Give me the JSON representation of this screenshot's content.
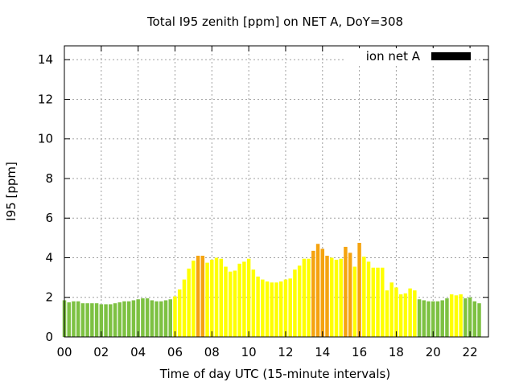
{
  "chart_data": {
    "type": "bar",
    "title": "Total I95 zenith [ppm] on NET A, DoY=308",
    "xlabel": "Time of day UTC (15-minute intervals)",
    "ylabel": "I95 [ppm]",
    "xlim": [
      0,
      23
    ],
    "ylim": [
      0,
      14.7
    ],
    "xticks": [
      {
        "value": 0,
        "label": "00"
      },
      {
        "value": 2,
        "label": "02"
      },
      {
        "value": 4,
        "label": "04"
      },
      {
        "value": 6,
        "label": "06"
      },
      {
        "value": 8,
        "label": "08"
      },
      {
        "value": 10,
        "label": "10"
      },
      {
        "value": 12,
        "label": "12"
      },
      {
        "value": 14,
        "label": "14"
      },
      {
        "value": 16,
        "label": "16"
      },
      {
        "value": 18,
        "label": "18"
      },
      {
        "value": 20,
        "label": "20"
      },
      {
        "value": 22,
        "label": "22"
      }
    ],
    "yticks": [
      {
        "value": 0,
        "label": "0"
      },
      {
        "value": 2,
        "label": "2"
      },
      {
        "value": 4,
        "label": "4"
      },
      {
        "value": 6,
        "label": "6"
      },
      {
        "value": 8,
        "label": "8"
      },
      {
        "value": 10,
        "label": "10"
      },
      {
        "value": 12,
        "label": "12"
      },
      {
        "value": 14,
        "label": "14"
      }
    ],
    "grid": true,
    "legend": {
      "label": "ion net A",
      "color": "#000000",
      "position": "top-right"
    },
    "bar_colors": {
      "green": "#7dc142",
      "yellow": "#ffff00",
      "orange": "#f5a30f"
    },
    "interval_hours": 0.25,
    "bars": [
      {
        "t": 0.0,
        "v": 1.85,
        "c": "green"
      },
      {
        "t": 0.25,
        "v": 1.75,
        "c": "green"
      },
      {
        "t": 0.5,
        "v": 1.8,
        "c": "green"
      },
      {
        "t": 0.75,
        "v": 1.8,
        "c": "green"
      },
      {
        "t": 1.0,
        "v": 1.7,
        "c": "green"
      },
      {
        "t": 1.25,
        "v": 1.7,
        "c": "green"
      },
      {
        "t": 1.5,
        "v": 1.7,
        "c": "green"
      },
      {
        "t": 1.75,
        "v": 1.7,
        "c": "green"
      },
      {
        "t": 2.0,
        "v": 1.65,
        "c": "green"
      },
      {
        "t": 2.25,
        "v": 1.65,
        "c": "green"
      },
      {
        "t": 2.5,
        "v": 1.65,
        "c": "green"
      },
      {
        "t": 2.75,
        "v": 1.7,
        "c": "green"
      },
      {
        "t": 3.0,
        "v": 1.75,
        "c": "green"
      },
      {
        "t": 3.25,
        "v": 1.8,
        "c": "green"
      },
      {
        "t": 3.5,
        "v": 1.8,
        "c": "green"
      },
      {
        "t": 3.75,
        "v": 1.85,
        "c": "green"
      },
      {
        "t": 4.0,
        "v": 1.9,
        "c": "green"
      },
      {
        "t": 4.25,
        "v": 1.95,
        "c": "green"
      },
      {
        "t": 4.5,
        "v": 1.95,
        "c": "green"
      },
      {
        "t": 4.75,
        "v": 1.85,
        "c": "green"
      },
      {
        "t": 5.0,
        "v": 1.8,
        "c": "green"
      },
      {
        "t": 5.25,
        "v": 1.8,
        "c": "green"
      },
      {
        "t": 5.5,
        "v": 1.85,
        "c": "green"
      },
      {
        "t": 5.75,
        "v": 1.9,
        "c": "green"
      },
      {
        "t": 6.0,
        "v": 2.05,
        "c": "yellow"
      },
      {
        "t": 6.25,
        "v": 2.4,
        "c": "yellow"
      },
      {
        "t": 6.5,
        "v": 2.9,
        "c": "yellow"
      },
      {
        "t": 6.75,
        "v": 3.45,
        "c": "yellow"
      },
      {
        "t": 7.0,
        "v": 3.85,
        "c": "yellow"
      },
      {
        "t": 7.25,
        "v": 4.1,
        "c": "orange"
      },
      {
        "t": 7.5,
        "v": 4.1,
        "c": "orange"
      },
      {
        "t": 7.75,
        "v": 3.75,
        "c": "yellow"
      },
      {
        "t": 8.0,
        "v": 3.9,
        "c": "yellow"
      },
      {
        "t": 8.25,
        "v": 4.0,
        "c": "yellow"
      },
      {
        "t": 8.5,
        "v": 3.95,
        "c": "yellow"
      },
      {
        "t": 8.75,
        "v": 3.55,
        "c": "yellow"
      },
      {
        "t": 9.0,
        "v": 3.3,
        "c": "yellow"
      },
      {
        "t": 9.25,
        "v": 3.35,
        "c": "yellow"
      },
      {
        "t": 9.5,
        "v": 3.7,
        "c": "yellow"
      },
      {
        "t": 9.75,
        "v": 3.8,
        "c": "yellow"
      },
      {
        "t": 10.0,
        "v": 3.95,
        "c": "yellow"
      },
      {
        "t": 10.25,
        "v": 3.4,
        "c": "yellow"
      },
      {
        "t": 10.5,
        "v": 3.05,
        "c": "yellow"
      },
      {
        "t": 10.75,
        "v": 2.9,
        "c": "yellow"
      },
      {
        "t": 11.0,
        "v": 2.8,
        "c": "yellow"
      },
      {
        "t": 11.25,
        "v": 2.75,
        "c": "yellow"
      },
      {
        "t": 11.5,
        "v": 2.75,
        "c": "yellow"
      },
      {
        "t": 11.75,
        "v": 2.8,
        "c": "yellow"
      },
      {
        "t": 12.0,
        "v": 2.9,
        "c": "yellow"
      },
      {
        "t": 12.25,
        "v": 2.95,
        "c": "yellow"
      },
      {
        "t": 12.5,
        "v": 3.4,
        "c": "yellow"
      },
      {
        "t": 12.75,
        "v": 3.6,
        "c": "yellow"
      },
      {
        "t": 13.0,
        "v": 3.95,
        "c": "yellow"
      },
      {
        "t": 13.25,
        "v": 3.95,
        "c": "yellow"
      },
      {
        "t": 13.5,
        "v": 4.35,
        "c": "orange"
      },
      {
        "t": 13.75,
        "v": 4.7,
        "c": "orange"
      },
      {
        "t": 14.0,
        "v": 4.45,
        "c": "orange"
      },
      {
        "t": 14.25,
        "v": 4.1,
        "c": "orange"
      },
      {
        "t": 14.5,
        "v": 4.0,
        "c": "yellow"
      },
      {
        "t": 14.75,
        "v": 3.9,
        "c": "yellow"
      },
      {
        "t": 15.0,
        "v": 3.95,
        "c": "yellow"
      },
      {
        "t": 15.25,
        "v": 4.55,
        "c": "orange"
      },
      {
        "t": 15.5,
        "v": 4.25,
        "c": "orange"
      },
      {
        "t": 15.75,
        "v": 3.55,
        "c": "yellow"
      },
      {
        "t": 16.0,
        "v": 4.75,
        "c": "orange"
      },
      {
        "t": 16.25,
        "v": 4.05,
        "c": "yellow"
      },
      {
        "t": 16.5,
        "v": 3.8,
        "c": "yellow"
      },
      {
        "t": 16.75,
        "v": 3.5,
        "c": "yellow"
      },
      {
        "t": 17.0,
        "v": 3.5,
        "c": "yellow"
      },
      {
        "t": 17.25,
        "v": 3.5,
        "c": "yellow"
      },
      {
        "t": 17.5,
        "v": 2.35,
        "c": "yellow"
      },
      {
        "t": 17.75,
        "v": 2.75,
        "c": "yellow"
      },
      {
        "t": 18.0,
        "v": 2.5,
        "c": "yellow"
      },
      {
        "t": 18.25,
        "v": 2.15,
        "c": "yellow"
      },
      {
        "t": 18.5,
        "v": 2.2,
        "c": "yellow"
      },
      {
        "t": 18.75,
        "v": 2.45,
        "c": "yellow"
      },
      {
        "t": 19.0,
        "v": 2.35,
        "c": "yellow"
      },
      {
        "t": 19.25,
        "v": 1.9,
        "c": "green"
      },
      {
        "t": 19.5,
        "v": 1.85,
        "c": "green"
      },
      {
        "t": 19.75,
        "v": 1.8,
        "c": "green"
      },
      {
        "t": 20.0,
        "v": 1.8,
        "c": "green"
      },
      {
        "t": 20.25,
        "v": 1.8,
        "c": "green"
      },
      {
        "t": 20.5,
        "v": 1.85,
        "c": "green"
      },
      {
        "t": 20.75,
        "v": 1.95,
        "c": "green"
      },
      {
        "t": 21.0,
        "v": 2.15,
        "c": "yellow"
      },
      {
        "t": 21.25,
        "v": 2.1,
        "c": "yellow"
      },
      {
        "t": 21.5,
        "v": 2.15,
        "c": "yellow"
      },
      {
        "t": 21.75,
        "v": 1.95,
        "c": "green"
      },
      {
        "t": 22.0,
        "v": 2.0,
        "c": "green"
      },
      {
        "t": 22.25,
        "v": 1.8,
        "c": "green"
      },
      {
        "t": 22.5,
        "v": 1.7,
        "c": "green"
      }
    ]
  }
}
